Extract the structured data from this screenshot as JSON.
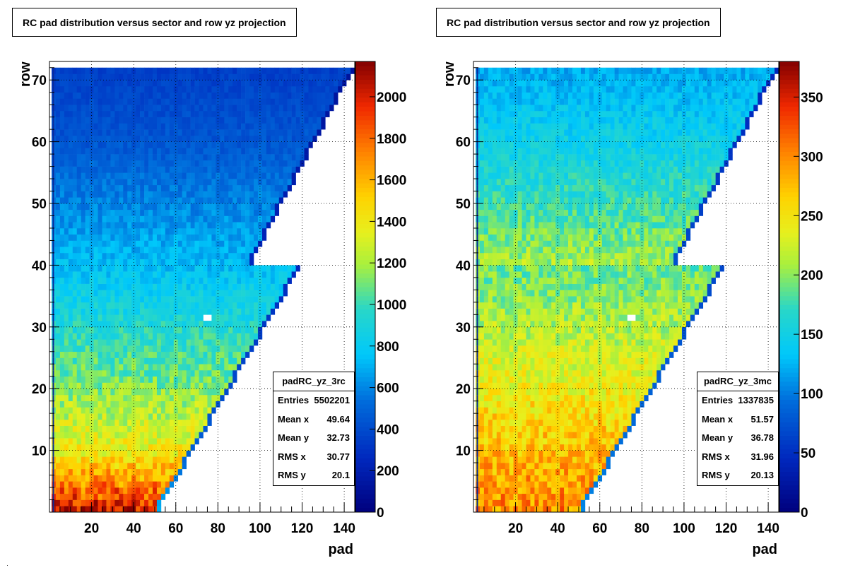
{
  "panels": [
    {
      "id": "left",
      "title": "RC pad distribution versus sector and row yz projection",
      "chart_data": {
        "type": "heatmap",
        "title": "RC pad distribution versus sector and row yz projection",
        "xlabel": "pad",
        "ylabel": "row",
        "xlim": [
          0,
          145
        ],
        "ylim": [
          0,
          73
        ],
        "x_ticks": [
          20,
          40,
          60,
          80,
          100,
          120,
          140
        ],
        "y_ticks": [
          10,
          20,
          30,
          40,
          50,
          60,
          70
        ],
        "grid": true,
        "colorbar": {
          "min": 0,
          "max": 2170,
          "ticks": [
            0,
            200,
            400,
            600,
            800,
            1000,
            1200,
            1400,
            1600,
            1800,
            2000
          ]
        },
        "inner_sector": {
          "rows": [
            1,
            40
          ],
          "max_pad_row1": 52,
          "max_pad_row40": 119
        },
        "outer_sector": {
          "rows": [
            41,
            72
          ],
          "max_pad_row41": 96,
          "max_pad_row72": 144
        },
        "intensity_profile": {
          "row1": 2000,
          "row10": 1400,
          "row20": 1150,
          "row30": 950,
          "row40": 750,
          "row50": 600,
          "row60": 450,
          "row72": 350
        },
        "hole": {
          "pads": [
            73,
            77
          ],
          "row": 32
        }
      },
      "stats": {
        "name": "padRC_yz_3rc",
        "entries_label": "Entries",
        "entries": "5502201",
        "meanx_label": "Mean x",
        "meanx": "49.64",
        "meany_label": "Mean y",
        "meany": "32.73",
        "rmsx_label": "RMS x",
        "rmsx": "30.77",
        "rmsy_label": "RMS y",
        "rmsy": "20.1"
      }
    },
    {
      "id": "right",
      "title": "RC pad distribution versus sector and row yz projection",
      "chart_data": {
        "type": "heatmap",
        "title": "RC pad distribution versus sector and row yz projection",
        "xlabel": "pad",
        "ylabel": "row",
        "xlim": [
          0,
          145
        ],
        "ylim": [
          0,
          73
        ],
        "x_ticks": [
          20,
          40,
          60,
          80,
          100,
          120,
          140
        ],
        "y_ticks": [
          10,
          20,
          30,
          40,
          50,
          60,
          70
        ],
        "grid": true,
        "colorbar": {
          "min": 0,
          "max": 380,
          "ticks": [
            0,
            50,
            100,
            150,
            200,
            250,
            300,
            350
          ]
        },
        "inner_sector": {
          "rows": [
            1,
            40
          ],
          "max_pad_row1": 52,
          "max_pad_row40": 119
        },
        "outer_sector": {
          "rows": [
            41,
            72
          ],
          "max_pad_row41": 96,
          "max_pad_row72": 144
        },
        "intensity_profile": {
          "row1": 300,
          "row10": 275,
          "row20": 245,
          "row30": 215,
          "row40": 190,
          "row41": 210,
          "row50": 175,
          "row60": 150,
          "row72": 120
        },
        "hole": {
          "pads": [
            73,
            77
          ],
          "row": 32
        }
      },
      "stats": {
        "name": "padRC_yz_3mc",
        "entries_label": "Entries",
        "entries": "1337835",
        "meanx_label": "Mean x",
        "meanx": "51.57",
        "meany_label": "Mean y",
        "meany": "36.78",
        "rmsx_label": "RMS x",
        "rmsx": "31.96",
        "rmsy_label": "RMS y",
        "rmsy": "20.13"
      }
    }
  ]
}
